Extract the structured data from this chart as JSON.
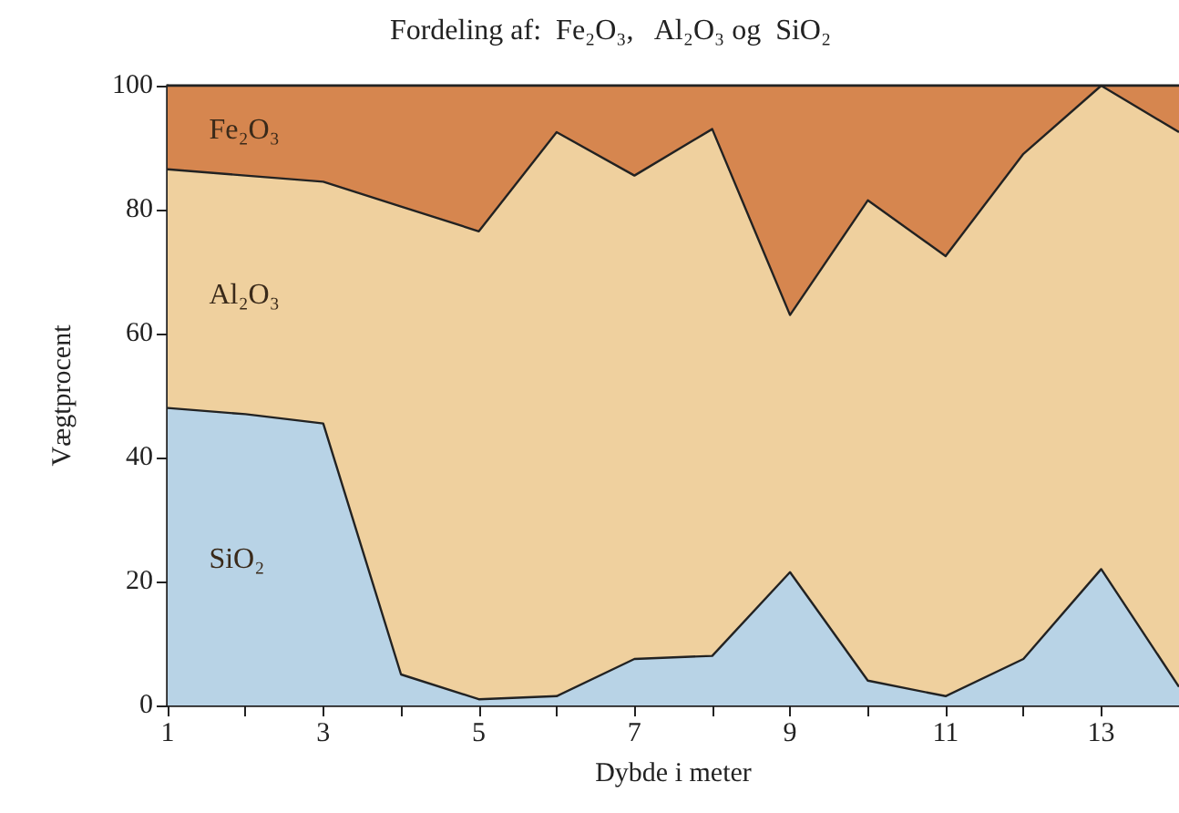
{
  "chart_data": {
    "type": "area",
    "title": "Fordeling af:  Fe₂O₃,   Al₂O₃ og  SiO₂",
    "xlabel": "Dybde i meter",
    "ylabel": "Vægtprocent",
    "stacked": true,
    "x": [
      1,
      2,
      3,
      4,
      5,
      6,
      7,
      8,
      9,
      10,
      11,
      12,
      13,
      14
    ],
    "series": [
      {
        "name": "SiO₂",
        "color": "#b8d3e6",
        "values": [
          48,
          47,
          45.5,
          5,
          1,
          1.5,
          7.5,
          8,
          21.5,
          4,
          1.5,
          7.5,
          22,
          3
        ]
      },
      {
        "name": "Al₂O₃",
        "color": "#efd09e",
        "values": [
          38.5,
          38.5,
          39,
          75.5,
          75.5,
          91,
          78,
          85,
          41.5,
          77.5,
          71,
          81.5,
          78,
          89.5
        ]
      },
      {
        "name": "Fe₂O₃",
        "color": "#d6864f",
        "values": [
          13.5,
          14.5,
          15.5,
          19.5,
          23.5,
          7.5,
          14.5,
          7,
          37,
          18.5,
          27.5,
          11,
          0,
          7.5
        ]
      }
    ],
    "xlim": [
      1,
      14
    ],
    "ylim": [
      0,
      100
    ],
    "xticks": [
      1,
      {
        "value": 2,
        "label": null
      },
      3,
      {
        "value": 4,
        "label": null
      },
      5,
      {
        "value": 6,
        "label": null
      },
      7,
      {
        "value": 8,
        "label": null
      },
      9,
      {
        "value": 10,
        "label": null
      },
      11,
      {
        "value": 12,
        "label": null
      },
      13
    ],
    "yticks": [
      0,
      20,
      40,
      60,
      80,
      100
    ],
    "grid": false,
    "legend": false,
    "marker": "none",
    "line_style": "solid"
  }
}
